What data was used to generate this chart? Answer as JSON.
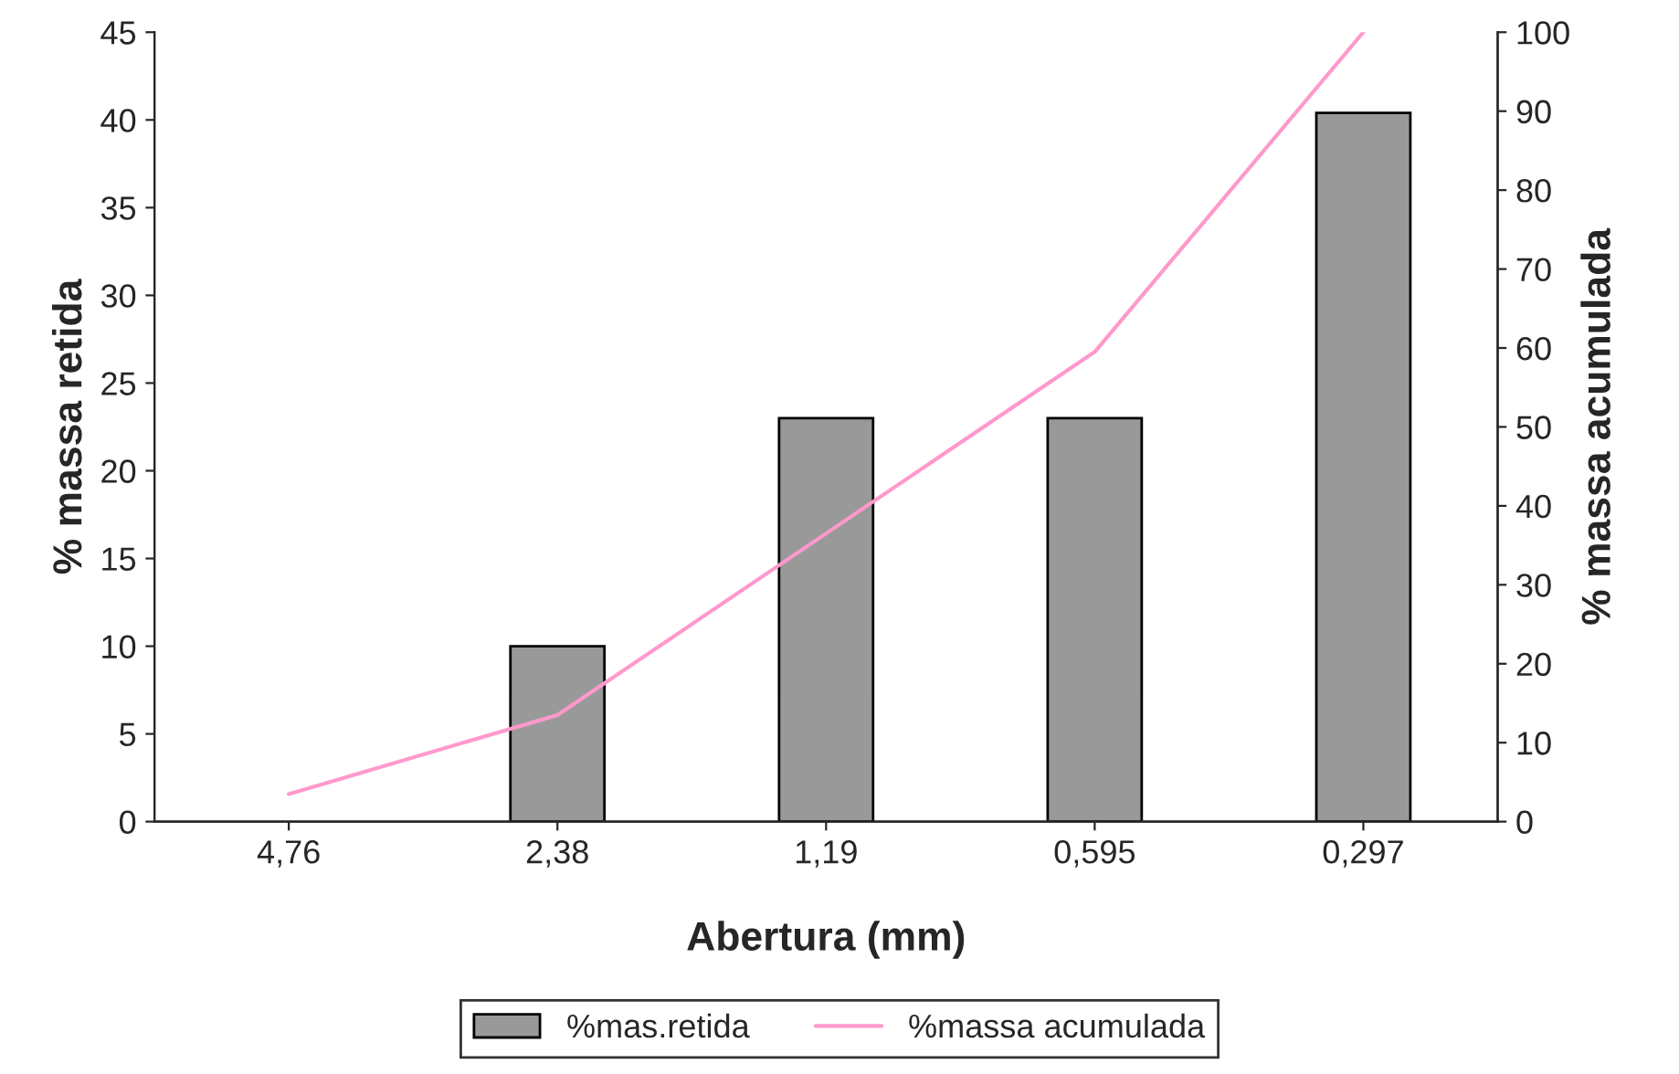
{
  "chart_data": {
    "type": "bar",
    "xlabel": "Abertura (mm)",
    "ylabel": "% massa retida",
    "y2label": "% massa acumulada",
    "categories": [
      "4,76",
      "2,38",
      "1,19",
      "0,595",
      "0,297"
    ],
    "series": [
      {
        "name": "%mas.retida",
        "color": "#999999",
        "values": [
          null,
          10,
          23,
          23,
          40.4
        ]
      },
      {
        "name": "%massa acumulada",
        "type": "line",
        "axis": "y2",
        "color": "#ff99cc",
        "values": [
          3.5,
          13.5,
          36.5,
          59.5,
          100
        ]
      }
    ],
    "ylim": [
      0,
      45
    ],
    "yticks": [
      0,
      5,
      10,
      15,
      20,
      25,
      30,
      35,
      40,
      45
    ],
    "y2lim": [
      0,
      100
    ],
    "y2ticks": [
      0,
      10,
      20,
      30,
      40,
      50,
      60,
      70,
      80,
      90,
      100
    ],
    "legend": "bottom",
    "grid": false
  }
}
